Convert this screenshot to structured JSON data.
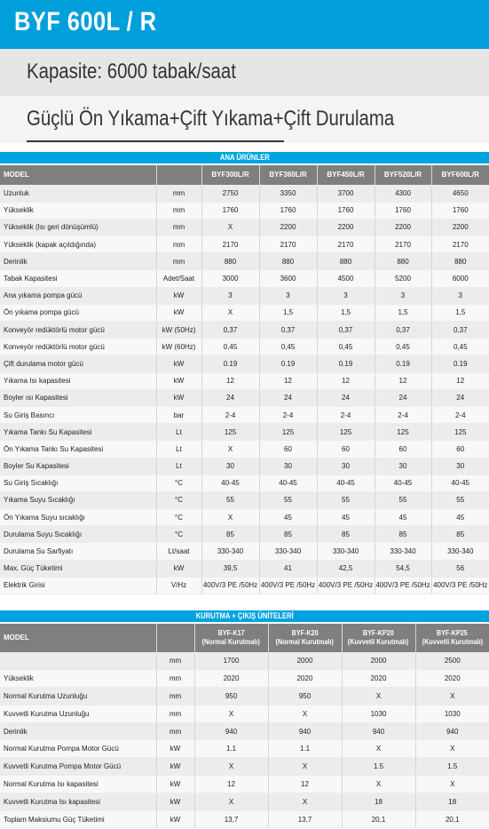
{
  "header": {
    "title": "BYF 600L / R",
    "capacity": "Kapasite: 6000 tabak/saat",
    "feature": "Güçlü Ön Yıkama+Çift Yıkama+Çift Durulama"
  },
  "colors": {
    "accent": "#009fdb",
    "table_header": "#7f7f7f"
  },
  "main_table": {
    "section_title": "ANA ÜRÜNLER",
    "model_label": "MODEL",
    "columns": [
      "BYF300L/R",
      "BYF360L/R",
      "BYF450L/R",
      "BYF520L/R",
      "BYF600L/R"
    ],
    "rows": [
      {
        "label": "Uzunluk",
        "unit": "mm",
        "values": [
          "2750",
          "3350",
          "3700",
          "4300",
          "4650"
        ]
      },
      {
        "label": "Yükseklik",
        "unit": "mm",
        "values": [
          "1760",
          "1760",
          "1760",
          "1760",
          "1760"
        ]
      },
      {
        "label": "Yükseklik (Isı geri dönüşümlü)",
        "unit": "mm",
        "values": [
          "X",
          "2200",
          "2200",
          "2200",
          "2200"
        ]
      },
      {
        "label": "Yükseklik (kapak açıldığında)",
        "unit": "mm",
        "values": [
          "2170",
          "2170",
          "2170",
          "2170",
          "2170"
        ]
      },
      {
        "label": "Derinlik",
        "unit": "mm",
        "values": [
          "880",
          "880",
          "880",
          "880",
          "880"
        ]
      },
      {
        "label": "Tabak Kapasitesi",
        "unit": "Adet/Saat",
        "values": [
          "3000",
          "3600",
          "4500",
          "5200",
          "6000"
        ]
      },
      {
        "label": "Ana yıkama pompa gücü",
        "unit": "kW",
        "values": [
          "3",
          "3",
          "3",
          "3",
          "3"
        ]
      },
      {
        "label": "Ön yıkama pompa gücü",
        "unit": "kW",
        "values": [
          "X",
          "1,5",
          "1,5",
          "1,5",
          "1,5"
        ]
      },
      {
        "label": "Konveyör redüktörlü motor gücü",
        "unit": "kW (50Hz)",
        "values": [
          "0,37",
          "0,37",
          "0,37",
          "0,37",
          "0,37"
        ]
      },
      {
        "label": "Konveyör redüktörlü motor gücü",
        "unit": "kW (60Hz)",
        "values": [
          "0,45",
          "0,45",
          "0,45",
          "0,45",
          "0,45"
        ]
      },
      {
        "label": "Çift durulama motor gücü",
        "unit": "kW",
        "values": [
          "0.19",
          "0.19",
          "0.19",
          "0.19",
          "0.19"
        ]
      },
      {
        "label": "Yıkama Isı kapasitesi",
        "unit": "kW",
        "values": [
          "12",
          "12",
          "12",
          "12",
          "12"
        ]
      },
      {
        "label": "Boyler ısı Kapasitesi",
        "unit": "kW",
        "values": [
          "24",
          "24",
          "24",
          "24",
          "24"
        ]
      },
      {
        "label": "Su Giriş Basıncı",
        "unit": "bar",
        "values": [
          "2-4",
          "2-4",
          "2-4",
          "2-4",
          "2-4"
        ]
      },
      {
        "label": "Yıkama Tankı Su Kapasitesi",
        "unit": "Lt",
        "values": [
          "125",
          "125",
          "125",
          "125",
          "125"
        ]
      },
      {
        "label": "Ön Yıkama Tankı Su Kapasitesi",
        "unit": "Lt",
        "values": [
          "X",
          "60",
          "60",
          "60",
          "60"
        ]
      },
      {
        "label": "Boyler Su Kapasitesi",
        "unit": "Lt",
        "values": [
          "30",
          "30",
          "30",
          "30",
          "30"
        ]
      },
      {
        "label": "Su Giriş Sıcaklığı",
        "unit": "°C",
        "values": [
          "40-45",
          "40-45",
          "40-45",
          "40-45",
          "40-45"
        ]
      },
      {
        "label": "Yıkama Suyu Sıcaklığı",
        "unit": "°C",
        "values": [
          "55",
          "55",
          "55",
          "55",
          "55"
        ]
      },
      {
        "label": "Ön Yıkama Suyu sıcaklığı",
        "unit": "°C",
        "values": [
          "X",
          "45",
          "45",
          "45",
          "45"
        ]
      },
      {
        "label": "Durulama Suyu Sıcaklığı",
        "unit": "°C",
        "values": [
          "85",
          "85",
          "85",
          "85",
          "85"
        ]
      },
      {
        "label": "Durulama Su Sarfiyatı",
        "unit": "Lt/saat",
        "values": [
          "330-340",
          "330-340",
          "330-340",
          "330-340",
          "330-340"
        ]
      },
      {
        "label": "Max. Güç Tüketimi",
        "unit": "kW",
        "values": [
          "39,5",
          "41",
          "42,5",
          "54,5",
          "56"
        ]
      },
      {
        "label": "Elektrik Girisi",
        "unit": "V/Hz",
        "values": [
          "400V/3 PE /50Hz",
          "400V/3 PE /50Hz",
          "400V/3 PE /50Hz",
          "400V/3 PE /50Hz",
          "400V/3 PE /50Hz"
        ]
      }
    ]
  },
  "dry_table": {
    "section_title": "KURUTMA + ÇIKIŞ ÜNİTELERİ",
    "model_label": "MODEL",
    "columns": [
      {
        "name": "BYF-K17",
        "sub": "(Normal Kurutmalı)"
      },
      {
        "name": "BYF-K20",
        "sub": "(Normal Kurutmalı)"
      },
      {
        "name": "BYF-KP20",
        "sub": "(Kuvvetli Kurutmalı)"
      },
      {
        "name": "BYF-KP25",
        "sub": "(Kuvvetli Kurutmalı)"
      }
    ],
    "rows": [
      {
        "label": "",
        "unit": "mm",
        "values": [
          "1700",
          "2000",
          "2000",
          "2500"
        ]
      },
      {
        "label": "Yükseklik",
        "unit": "mm",
        "values": [
          "2020",
          "2020",
          "2020",
          "2020"
        ]
      },
      {
        "label": "Normal Kurutma Uzunluğu",
        "unit": "mm",
        "values": [
          "950",
          "950",
          "X",
          "X"
        ]
      },
      {
        "label": "Kuvvetli Kurutma Uzunluğu",
        "unit": "mm",
        "values": [
          "X",
          "X",
          "1030",
          "1030"
        ]
      },
      {
        "label": "Derinlik",
        "unit": "mm",
        "values": [
          "940",
          "940",
          "940",
          "940"
        ]
      },
      {
        "label": "Normal Kurutma Pompa Motor Gücü",
        "unit": "kW",
        "values": [
          "1.1",
          "1.1",
          "X",
          "X"
        ]
      },
      {
        "label": "Kuvvetli Kurutma Pompa Motor Gücü",
        "unit": "kW",
        "values": [
          "X",
          "X",
          "1.5",
          "1.5"
        ]
      },
      {
        "label": "Normal Kurutma Isı kapasitesi",
        "unit": "kW",
        "values": [
          "12",
          "12",
          "X",
          "X"
        ]
      },
      {
        "label": "Kuvvetli Kurutma Isı kapasitesi",
        "unit": "kW",
        "values": [
          "X",
          "X",
          "18",
          "18"
        ]
      },
      {
        "label": "Toplam Maksiumu Güç Tüketimi",
        "unit": "kW",
        "values": [
          "13,7",
          "13,7",
          "20,1",
          "20,1"
        ]
      }
    ]
  }
}
